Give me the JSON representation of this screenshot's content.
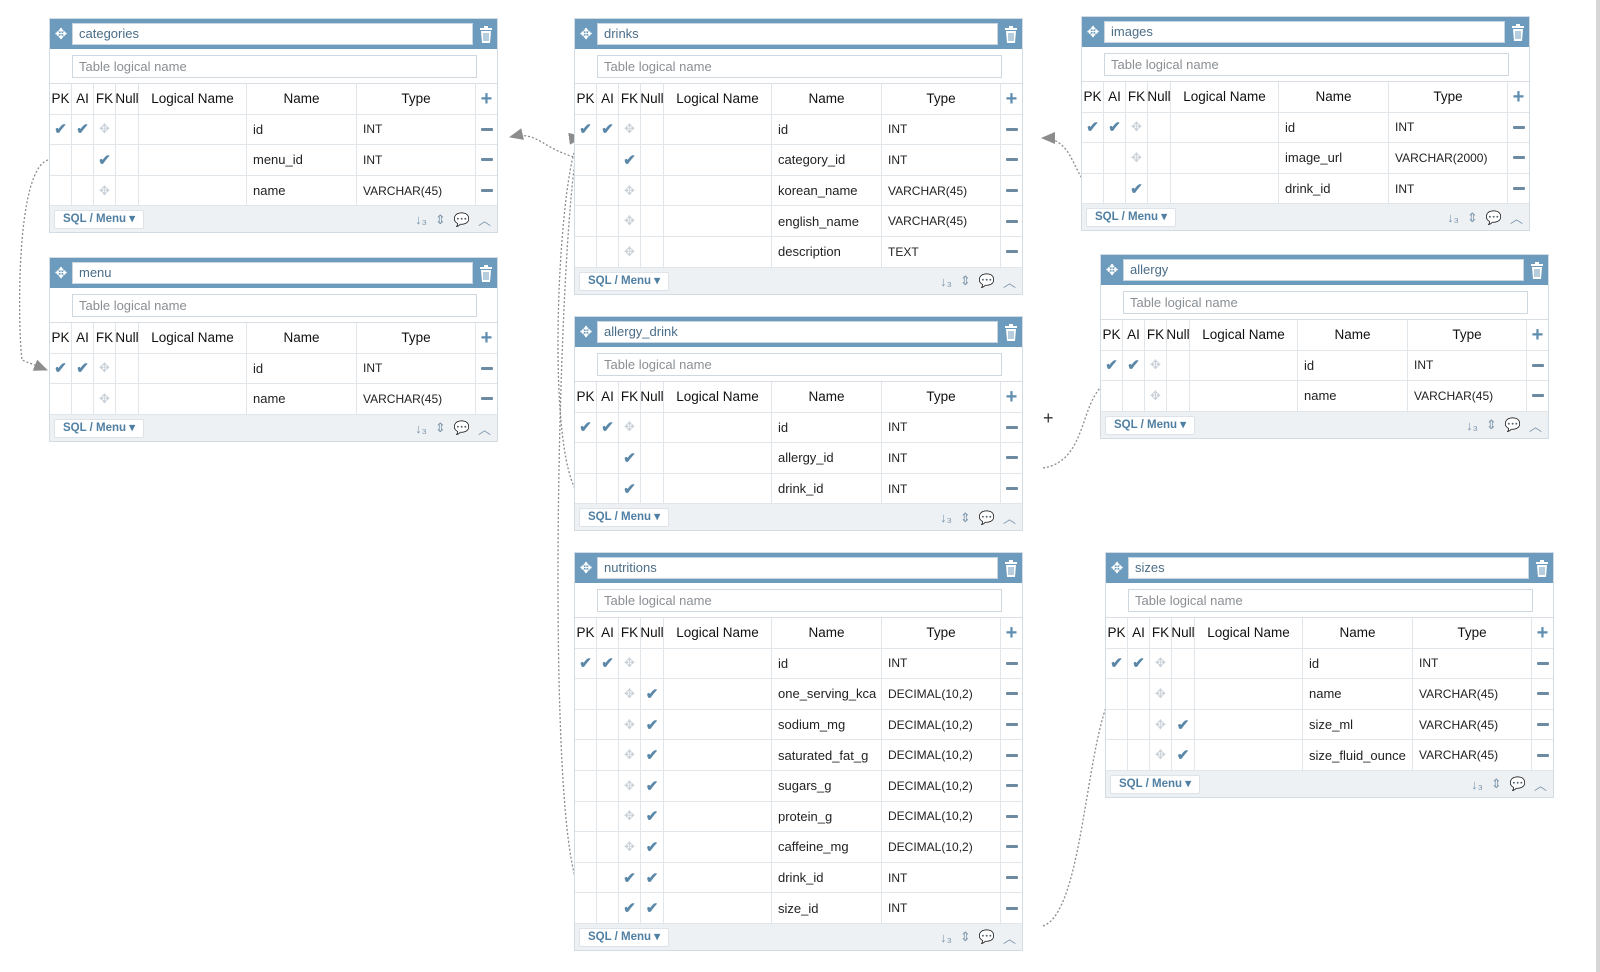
{
  "table_placeholder": "Table logical name",
  "footer_menu_label": "SQL / Menu",
  "columns_header": {
    "pk": "PK",
    "ai": "AI",
    "fk": "FK",
    "null": "Null",
    "logical": "Logical Name",
    "name": "Name",
    "type": "Type"
  },
  "colors": {
    "header": "#6d9bbd",
    "check": "#5b88a8",
    "background": "#eef1f4"
  },
  "icons": {
    "move": "move-icon",
    "delete": "trash-icon",
    "add": "plus-icon",
    "remove": "minus-icon",
    "sort": "sort-icon",
    "order": "updown-icon",
    "comment": "comment-icon",
    "collapse": "chevron-up-icon"
  },
  "tables": [
    {
      "name": "categories",
      "rows": [
        {
          "pk": true,
          "ai": true,
          "fk": false,
          "null": false,
          "name": "id",
          "type": "INT"
        },
        {
          "pk": false,
          "ai": false,
          "fk": true,
          "null": false,
          "name": "menu_id",
          "type": "INT"
        },
        {
          "pk": false,
          "ai": false,
          "fk": false,
          "null": false,
          "name": "name",
          "type": "VARCHAR(45)"
        }
      ]
    },
    {
      "name": "menu",
      "rows": [
        {
          "pk": true,
          "ai": true,
          "fk": false,
          "null": false,
          "name": "id",
          "type": "INT"
        },
        {
          "pk": false,
          "ai": false,
          "fk": false,
          "null": false,
          "name": "name",
          "type": "VARCHAR(45)"
        }
      ]
    },
    {
      "name": "drinks",
      "rows": [
        {
          "pk": true,
          "ai": true,
          "fk": false,
          "null": false,
          "name": "id",
          "type": "INT"
        },
        {
          "pk": false,
          "ai": false,
          "fk": true,
          "null": false,
          "name": "category_id",
          "type": "INT"
        },
        {
          "pk": false,
          "ai": false,
          "fk": false,
          "null": false,
          "name": "korean_name",
          "type": "VARCHAR(45)"
        },
        {
          "pk": false,
          "ai": false,
          "fk": false,
          "null": false,
          "name": "english_name",
          "type": "VARCHAR(45)"
        },
        {
          "pk": false,
          "ai": false,
          "fk": false,
          "null": false,
          "name": "description",
          "type": "TEXT"
        }
      ]
    },
    {
      "name": "allergy_drink",
      "rows": [
        {
          "pk": true,
          "ai": true,
          "fk": false,
          "null": false,
          "name": "id",
          "type": "INT"
        },
        {
          "pk": false,
          "ai": false,
          "fk": true,
          "null": false,
          "name": "allergy_id",
          "type": "INT"
        },
        {
          "pk": false,
          "ai": false,
          "fk": true,
          "null": false,
          "name": "drink_id",
          "type": "INT"
        }
      ]
    },
    {
      "name": "nutritions",
      "rows": [
        {
          "pk": true,
          "ai": true,
          "fk": false,
          "null": false,
          "name": "id",
          "type": "INT"
        },
        {
          "pk": false,
          "ai": false,
          "fk": false,
          "null": true,
          "name": "one_serving_kca",
          "type": "DECIMAL(10,2)"
        },
        {
          "pk": false,
          "ai": false,
          "fk": false,
          "null": true,
          "name": "sodium_mg",
          "type": "DECIMAL(10,2)"
        },
        {
          "pk": false,
          "ai": false,
          "fk": false,
          "null": true,
          "name": "saturated_fat_g",
          "type": "DECIMAL(10,2)"
        },
        {
          "pk": false,
          "ai": false,
          "fk": false,
          "null": true,
          "name": "sugars_g",
          "type": "DECIMAL(10,2)"
        },
        {
          "pk": false,
          "ai": false,
          "fk": false,
          "null": true,
          "name": "protein_g",
          "type": "DECIMAL(10,2)"
        },
        {
          "pk": false,
          "ai": false,
          "fk": false,
          "null": true,
          "name": "caffeine_mg",
          "type": "DECIMAL(10,2)"
        },
        {
          "pk": false,
          "ai": false,
          "fk": true,
          "null": true,
          "name": "drink_id",
          "type": "INT"
        },
        {
          "pk": false,
          "ai": false,
          "fk": true,
          "null": true,
          "name": "size_id",
          "type": "INT"
        }
      ]
    },
    {
      "name": "images",
      "rows": [
        {
          "pk": true,
          "ai": true,
          "fk": false,
          "null": false,
          "name": "id",
          "type": "INT"
        },
        {
          "pk": false,
          "ai": false,
          "fk": false,
          "null": false,
          "name": "image_url",
          "type": "VARCHAR(2000)"
        },
        {
          "pk": false,
          "ai": false,
          "fk": true,
          "null": false,
          "name": "drink_id",
          "type": "INT"
        }
      ]
    },
    {
      "name": "allergy",
      "rows": [
        {
          "pk": true,
          "ai": true,
          "fk": false,
          "null": false,
          "name": "id",
          "type": "INT"
        },
        {
          "pk": false,
          "ai": false,
          "fk": false,
          "null": false,
          "name": "name",
          "type": "VARCHAR(45)"
        }
      ]
    },
    {
      "name": "sizes",
      "rows": [
        {
          "pk": true,
          "ai": true,
          "fk": false,
          "null": false,
          "name": "id",
          "type": "INT"
        },
        {
          "pk": false,
          "ai": false,
          "fk": false,
          "null": false,
          "name": "name",
          "type": "VARCHAR(45)"
        },
        {
          "pk": false,
          "ai": false,
          "fk": false,
          "null": true,
          "name": "size_ml",
          "type": "VARCHAR(45)"
        },
        {
          "pk": false,
          "ai": false,
          "fk": false,
          "null": true,
          "name": "size_fluid_ounce",
          "type": "VARCHAR(45)"
        }
      ]
    }
  ]
}
